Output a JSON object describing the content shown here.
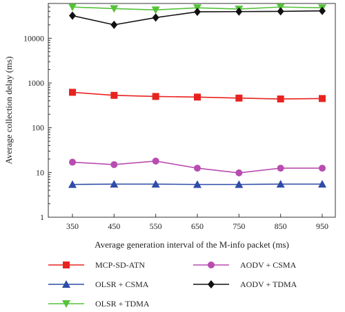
{
  "chart_data": {
    "type": "line",
    "ylog": true,
    "xlabel": "Average generation interval of the M-info packet (ms)",
    "ylabel": "Average collection delay (ms)",
    "x": [
      350,
      450,
      550,
      650,
      750,
      850,
      950
    ],
    "x_ticks": [
      "350",
      "450",
      "550",
      "650",
      "750",
      "850",
      "950"
    ],
    "ylim": [
      1,
      60000
    ],
    "y_ticks": [
      1,
      10,
      100,
      1000,
      10000
    ],
    "y_tick_labels": [
      "1",
      "10",
      "100",
      "1000",
      "10000"
    ],
    "series": [
      {
        "name": "MCP-SD-ATN",
        "color": "#e8221f",
        "marker": "square",
        "values": [
          620,
          530,
          500,
          485,
          460,
          440,
          450
        ]
      },
      {
        "name": "OLSR + CSMA",
        "color": "#2e4ca8",
        "marker": "triangle-up",
        "values": [
          5.4,
          5.5,
          5.5,
          5.4,
          5.4,
          5.5,
          5.5
        ]
      },
      {
        "name": "OLSR + TDMA",
        "color": "#55c23a",
        "marker": "triangle-down",
        "values": [
          50000,
          46000,
          43000,
          48000,
          45000,
          50000,
          48000
        ]
      },
      {
        "name": "AODV + CSMA",
        "color": "#b84cb0",
        "marker": "circle",
        "values": [
          17,
          15,
          18,
          12.5,
          9.8,
          12.5,
          12.5
        ]
      },
      {
        "name": "AODV + TDMA",
        "color": "#111111",
        "marker": "diamond",
        "values": [
          32000,
          20000,
          29000,
          39000,
          39500,
          40000,
          41000
        ]
      }
    ],
    "legend_position": "bottom"
  }
}
